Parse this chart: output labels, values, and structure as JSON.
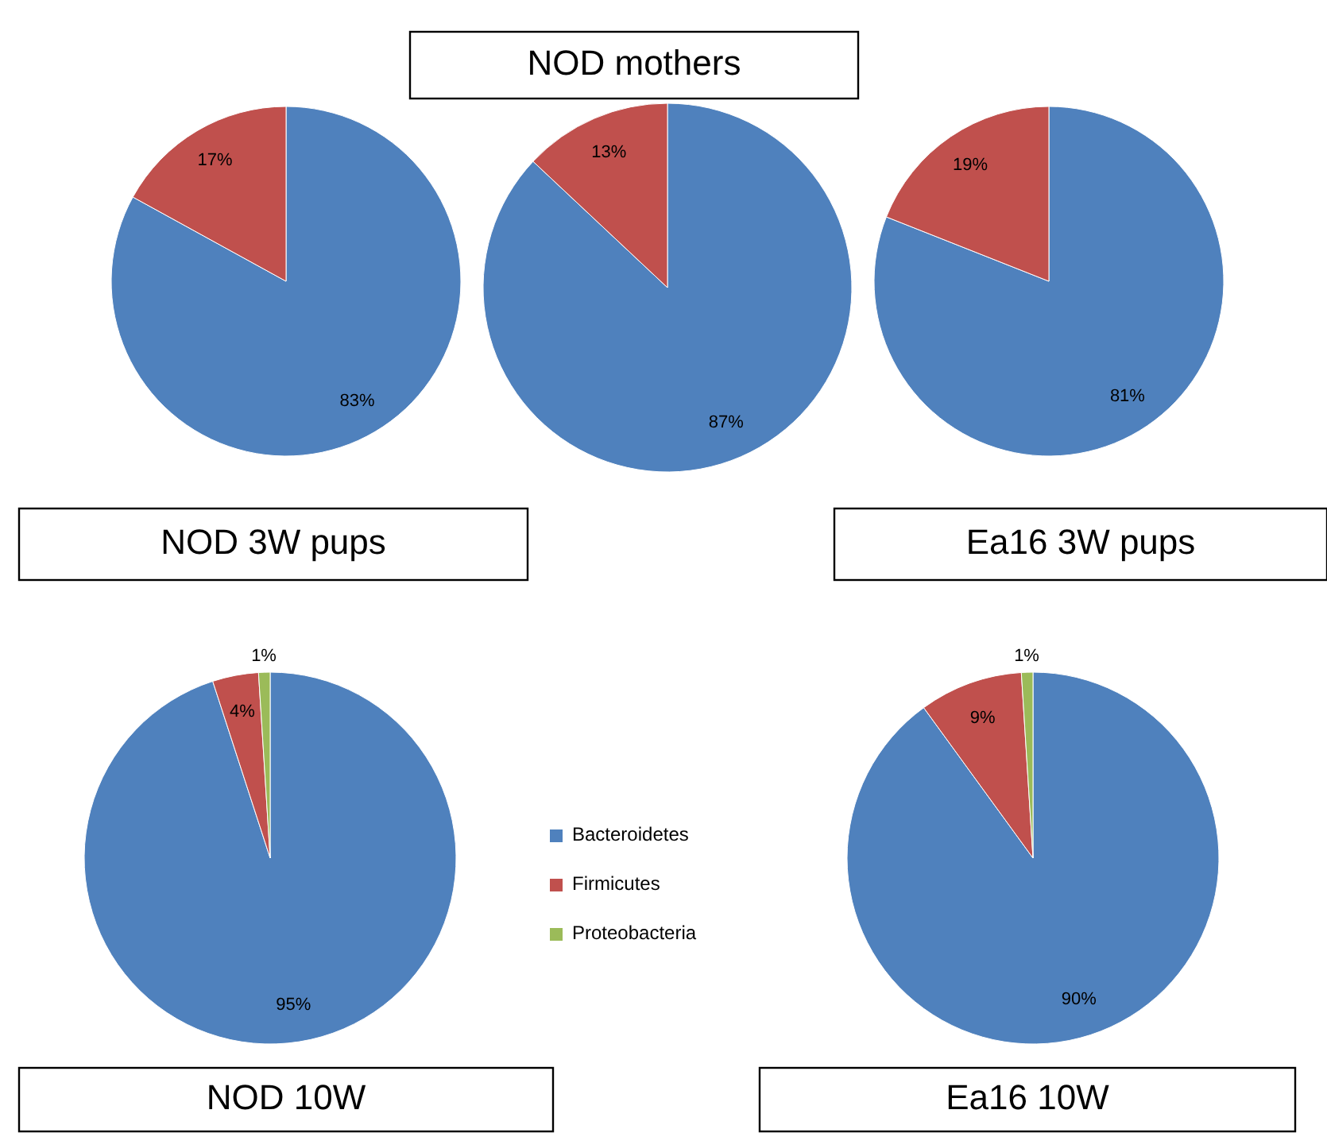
{
  "chart_data": [
    {
      "type": "pie",
      "title": "NOD 3W pups",
      "categories": [
        null,
        null
      ],
      "values": [
        83,
        17
      ],
      "colors": [
        "#4f81bd",
        "#c0504d"
      ],
      "value_labels": [
        "83%",
        "17%"
      ]
    },
    {
      "type": "pie",
      "title": "NOD mothers",
      "categories": [
        null,
        null
      ],
      "values": [
        87,
        13
      ],
      "colors": [
        "#4f81bd",
        "#c0504d"
      ],
      "value_labels": [
        "87%",
        "13%"
      ]
    },
    {
      "type": "pie",
      "title": "Ea16 3W pups",
      "categories": [
        null,
        null
      ],
      "values": [
        81,
        19
      ],
      "colors": [
        "#4f81bd",
        "#c0504d"
      ],
      "value_labels": [
        "81%",
        "19%"
      ]
    },
    {
      "type": "pie",
      "title": "NOD 10W",
      "categories": [
        "Bacteroidetes",
        "Firmicutes",
        "Proteobacteria"
      ],
      "values": [
        95,
        4,
        1
      ],
      "colors": [
        "#4f81bd",
        "#c0504d",
        "#9bbb59"
      ],
      "value_labels": [
        "95%",
        "4%",
        "1%"
      ],
      "legend": "right"
    },
    {
      "type": "pie",
      "title": "Ea16 10W",
      "categories": [
        null,
        null,
        null
      ],
      "values": [
        90,
        9,
        1
      ],
      "colors": [
        "#4f81bd",
        "#c0504d",
        "#9bbb59"
      ],
      "value_labels": [
        "90%",
        "9%",
        "1%"
      ]
    }
  ]
}
